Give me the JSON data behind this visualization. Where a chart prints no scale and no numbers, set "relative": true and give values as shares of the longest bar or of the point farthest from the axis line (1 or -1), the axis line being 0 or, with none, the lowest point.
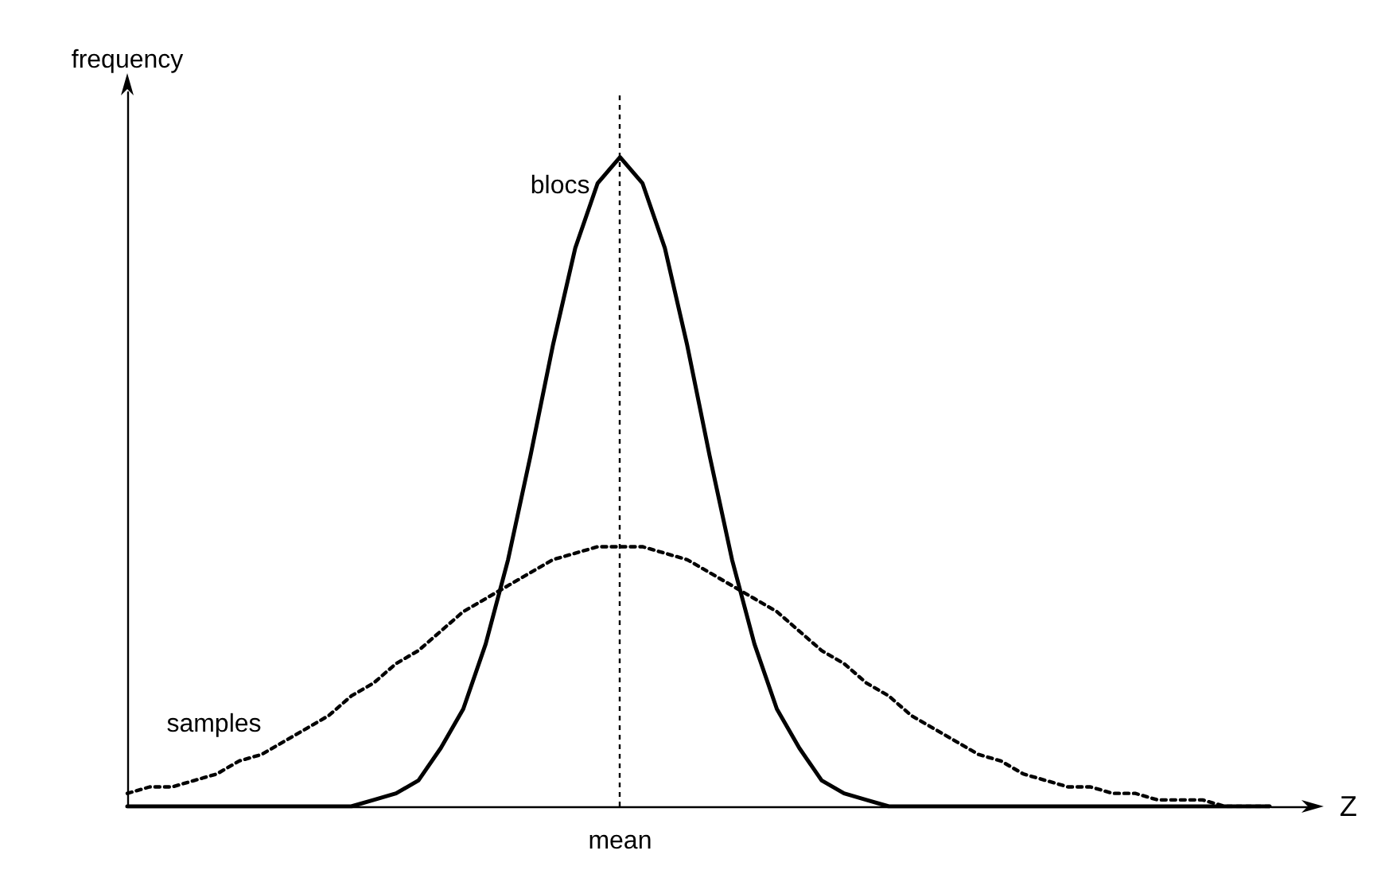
{
  "chart_data": {
    "type": "line",
    "relative": true,
    "xlabel": "Z",
    "ylabel": "frequency",
    "categories": [
      null,
      null,
      null,
      null,
      null,
      null,
      null,
      null,
      null,
      null,
      null,
      null,
      null,
      null,
      null,
      null,
      null,
      null,
      null,
      null,
      null,
      null,
      null,
      null,
      null,
      null,
      null,
      null,
      null,
      null,
      null,
      null,
      null,
      null,
      null,
      null,
      null,
      null,
      null,
      null,
      null,
      null,
      null,
      null,
      null,
      null,
      null,
      null,
      null,
      null,
      null,
      null
    ],
    "series": [
      {
        "name": "blocs",
        "color": "#000000",
        "line_style": "solid",
        "values": [
          0,
          0,
          0,
          0,
          0,
          0,
          0,
          0,
          0,
          0,
          0,
          0.01,
          0.02,
          0.04,
          0.09,
          0.15,
          0.25,
          0.38,
          0.54,
          0.71,
          0.86,
          0.96,
          1,
          0.96,
          0.86,
          0.71,
          0.54,
          0.38,
          0.25,
          0.15,
          0.09,
          0.04,
          0.02,
          0.01,
          0,
          0,
          0,
          0,
          0,
          0,
          0,
          0,
          0,
          0,
          0,
          0,
          0,
          0,
          0,
          0,
          0,
          0
        ]
      },
      {
        "name": "samples",
        "color": "#000000",
        "line_style": "dotted",
        "values": [
          0.02,
          0.03,
          0.03,
          0.04,
          0.05,
          0.07,
          0.08,
          0.1,
          0.12,
          0.14,
          0.17,
          0.19,
          0.22,
          0.24,
          0.27,
          0.3,
          0.32,
          0.34,
          0.36,
          0.38,
          0.39,
          0.4,
          0.4,
          0.4,
          0.39,
          0.38,
          0.36,
          0.34,
          0.32,
          0.3,
          0.27,
          0.24,
          0.22,
          0.19,
          0.17,
          0.14,
          0.12,
          0.1,
          0.08,
          0.07,
          0.05,
          0.04,
          0.03,
          0.03,
          0.02,
          0.02,
          0.01,
          0.01,
          0.01,
          0,
          0,
          0
        ]
      }
    ],
    "ref_lines": [
      {
        "axis": "x",
        "label": "mean",
        "line_style": "dotted",
        "color": "#000000"
      }
    ],
    "marker": "none",
    "legend": false,
    "grid": false
  }
}
